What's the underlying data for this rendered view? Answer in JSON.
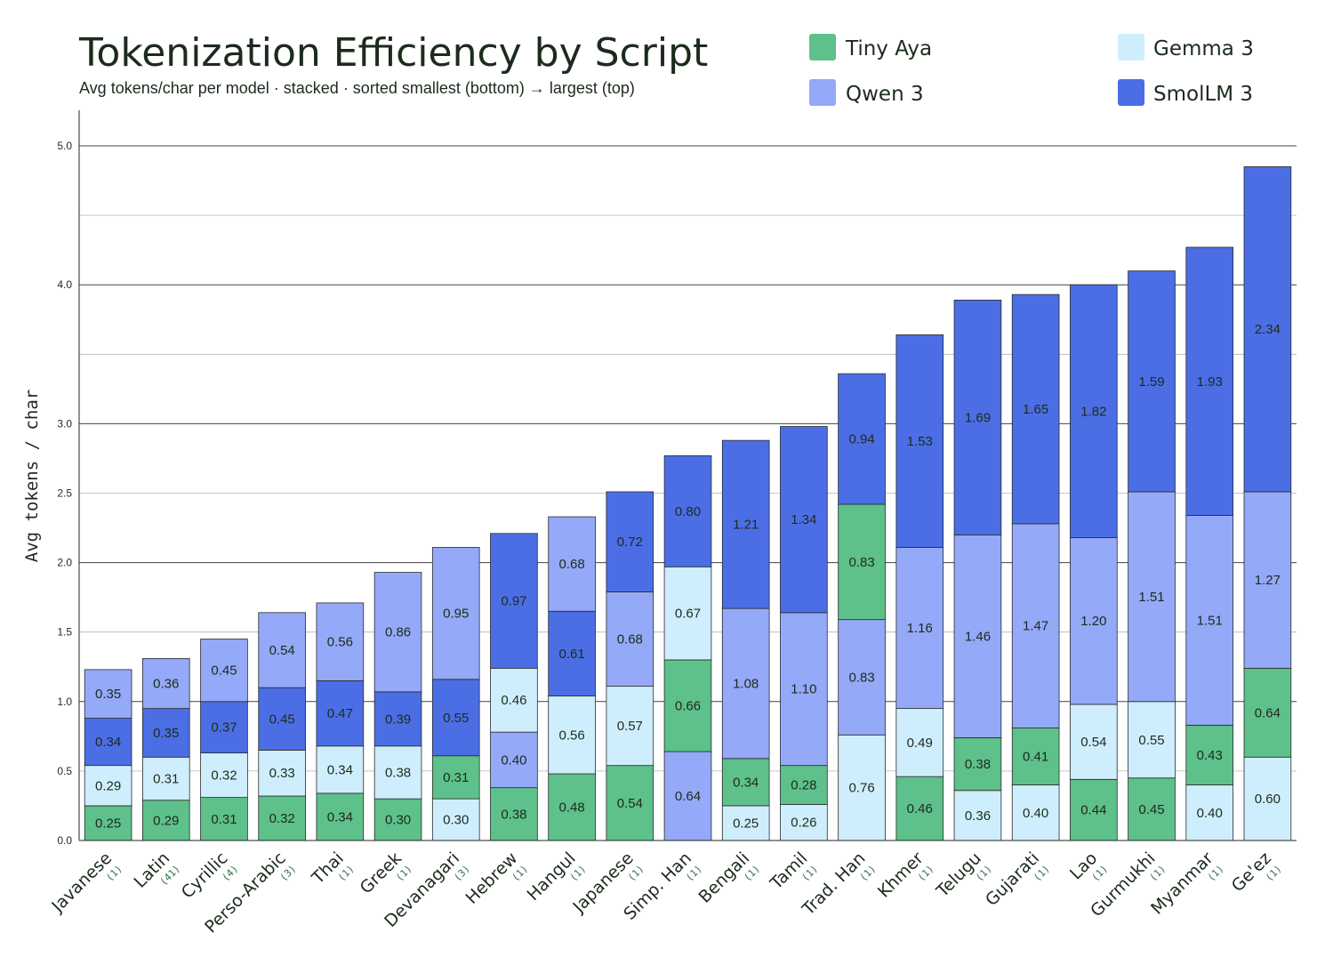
{
  "chart_data": {
    "type": "bar",
    "stacked": true,
    "title": "Tokenization Efficiency by Script",
    "subtitle": "Avg tokens/char per model · stacked · sorted smallest (bottom) → largest (top)",
    "ylabel": "Avg tokens / char",
    "ylim": [
      0,
      5.2
    ],
    "yticks": [
      "0.0",
      "0.5",
      "1.0",
      "1.5",
      "2.0",
      "2.5",
      "3.0",
      "4.0",
      "5.0"
    ],
    "ytick_values": [
      0,
      0.5,
      1.0,
      1.5,
      2.0,
      2.5,
      3.0,
      4.0,
      5.0
    ],
    "grid_values": [
      0.5,
      1.0,
      1.5,
      2.0,
      2.5,
      3.0,
      3.5,
      4.0,
      4.5,
      5.0
    ],
    "legend_position": "top-right",
    "models": [
      {
        "name": "Tiny Aya",
        "color": "#5ec08a"
      },
      {
        "name": "Gemma 3",
        "color": "#cfeefd"
      },
      {
        "name": "Qwen 3",
        "color": "#94a9f7"
      },
      {
        "name": "SmolLM 3",
        "color": "#4b6ee5"
      }
    ],
    "categories": [
      {
        "name": "Javanese",
        "count": "(1)",
        "segments": [
          [
            "Tiny Aya",
            0.25
          ],
          [
            "Gemma 3",
            0.29
          ],
          [
            "SmolLM 3",
            0.34
          ],
          [
            "Qwen 3",
            0.35
          ]
        ]
      },
      {
        "name": "Latin",
        "count": "(41)",
        "segments": [
          [
            "Tiny Aya",
            0.29
          ],
          [
            "Gemma 3",
            0.31
          ],
          [
            "SmolLM 3",
            0.35
          ],
          [
            "Qwen 3",
            0.36
          ]
        ]
      },
      {
        "name": "Cyrillic",
        "count": "(4)",
        "segments": [
          [
            "Tiny Aya",
            0.31
          ],
          [
            "Gemma 3",
            0.32
          ],
          [
            "SmolLM 3",
            0.37
          ],
          [
            "Qwen 3",
            0.45
          ]
        ]
      },
      {
        "name": "Perso-Arabic",
        "count": "(3)",
        "segments": [
          [
            "Tiny Aya",
            0.32
          ],
          [
            "Gemma 3",
            0.33
          ],
          [
            "SmolLM 3",
            0.45
          ],
          [
            "Qwen 3",
            0.54
          ]
        ]
      },
      {
        "name": "Thai",
        "count": "(1)",
        "segments": [
          [
            "Tiny Aya",
            0.34
          ],
          [
            "Gemma 3",
            0.34
          ],
          [
            "SmolLM 3",
            0.47
          ],
          [
            "Qwen 3",
            0.56
          ]
        ]
      },
      {
        "name": "Greek",
        "count": "(1)",
        "segments": [
          [
            "Tiny Aya",
            0.3
          ],
          [
            "Gemma 3",
            0.38
          ],
          [
            "SmolLM 3",
            0.39
          ],
          [
            "Qwen 3",
            0.86
          ]
        ]
      },
      {
        "name": "Devanagari",
        "count": "(3)",
        "segments": [
          [
            "Gemma 3",
            0.3
          ],
          [
            "Tiny Aya",
            0.31
          ],
          [
            "SmolLM 3",
            0.55
          ],
          [
            "Qwen 3",
            0.95
          ]
        ]
      },
      {
        "name": "Hebrew",
        "count": "(1)",
        "segments": [
          [
            "Tiny Aya",
            0.38
          ],
          [
            "Qwen 3",
            0.4
          ],
          [
            "Gemma 3",
            0.46
          ],
          [
            "SmolLM 3",
            0.97
          ]
        ]
      },
      {
        "name": "Hangul",
        "count": "(1)",
        "segments": [
          [
            "Tiny Aya",
            0.48
          ],
          [
            "Gemma 3",
            0.56
          ],
          [
            "SmolLM 3",
            0.61
          ],
          [
            "Qwen 3",
            0.68
          ]
        ]
      },
      {
        "name": "Japanese",
        "count": "(1)",
        "segments": [
          [
            "Tiny Aya",
            0.54
          ],
          [
            "Gemma 3",
            0.57
          ],
          [
            "Qwen 3",
            0.68
          ],
          [
            "SmolLM 3",
            0.72
          ]
        ]
      },
      {
        "name": "Simp. Han",
        "count": "(1)",
        "segments": [
          [
            "Qwen 3",
            0.64
          ],
          [
            "Tiny Aya",
            0.66
          ],
          [
            "Gemma 3",
            0.67
          ],
          [
            "SmolLM 3",
            0.8
          ]
        ]
      },
      {
        "name": "Bengali",
        "count": "(1)",
        "segments": [
          [
            "Gemma 3",
            0.25
          ],
          [
            "Tiny Aya",
            0.34
          ],
          [
            "Qwen 3",
            1.08
          ],
          [
            "SmolLM 3",
            1.21
          ]
        ]
      },
      {
        "name": "Tamil",
        "count": "(1)",
        "segments": [
          [
            "Gemma 3",
            0.26
          ],
          [
            "Tiny Aya",
            0.28
          ],
          [
            "Qwen 3",
            1.1
          ],
          [
            "SmolLM 3",
            1.34
          ]
        ]
      },
      {
        "name": "Trad. Han",
        "count": "(1)",
        "segments": [
          [
            "Gemma 3",
            0.76
          ],
          [
            "Qwen 3",
            0.83
          ],
          [
            "Tiny Aya",
            0.83
          ],
          [
            "SmolLM 3",
            0.94
          ]
        ]
      },
      {
        "name": "Khmer",
        "count": "(1)",
        "segments": [
          [
            "Tiny Aya",
            0.46
          ],
          [
            "Gemma 3",
            0.49
          ],
          [
            "Qwen 3",
            1.16
          ],
          [
            "SmolLM 3",
            1.53
          ]
        ]
      },
      {
        "name": "Telugu",
        "count": "(1)",
        "segments": [
          [
            "Gemma 3",
            0.36
          ],
          [
            "Tiny Aya",
            0.38
          ],
          [
            "Qwen 3",
            1.46
          ],
          [
            "SmolLM 3",
            1.69
          ]
        ]
      },
      {
        "name": "Gujarati",
        "count": "(1)",
        "segments": [
          [
            "Gemma 3",
            0.4
          ],
          [
            "Tiny Aya",
            0.41
          ],
          [
            "Qwen 3",
            1.47
          ],
          [
            "SmolLM 3",
            1.65
          ]
        ]
      },
      {
        "name": "Lao",
        "count": "(1)",
        "segments": [
          [
            "Tiny Aya",
            0.44
          ],
          [
            "Gemma 3",
            0.54
          ],
          [
            "Qwen 3",
            1.2
          ],
          [
            "SmolLM 3",
            1.82
          ]
        ]
      },
      {
        "name": "Gurmukhi",
        "count": "(1)",
        "segments": [
          [
            "Tiny Aya",
            0.45
          ],
          [
            "Gemma 3",
            0.55
          ],
          [
            "Qwen 3",
            1.51
          ],
          [
            "SmolLM 3",
            1.59
          ]
        ]
      },
      {
        "name": "Myanmar",
        "count": "(1)",
        "segments": [
          [
            "Gemma 3",
            0.4
          ],
          [
            "Tiny Aya",
            0.43
          ],
          [
            "Qwen 3",
            1.51
          ],
          [
            "SmolLM 3",
            1.93
          ]
        ]
      },
      {
        "name": "Ge'ez",
        "count": "(1)",
        "segments": [
          [
            "Gemma 3",
            0.6
          ],
          [
            "Tiny Aya",
            0.64
          ],
          [
            "Qwen 3",
            1.27
          ],
          [
            "SmolLM 3",
            2.34
          ]
        ]
      }
    ]
  }
}
